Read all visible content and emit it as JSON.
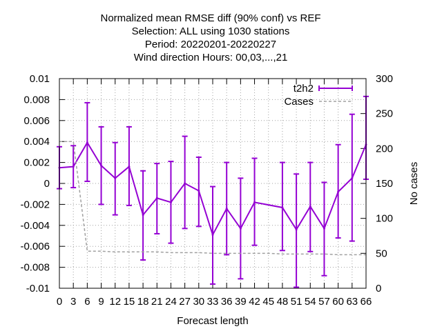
{
  "chart_data": {
    "type": "line",
    "title_lines": [
      "Normalized mean RMSE diff (90% conf) vs REF",
      "Selection: ALL using  1030 stations",
      "Period: 20220201-20220227",
      "Wind direction   Hours:  00,03,...,21"
    ],
    "xlabel": "Forecast length",
    "ylabel_right": "No cases",
    "x": [
      0,
      3,
      6,
      9,
      12,
      15,
      18,
      21,
      24,
      27,
      30,
      33,
      36,
      39,
      42,
      45,
      48,
      51,
      54,
      57,
      60,
      63,
      66
    ],
    "xlim": [
      0,
      66
    ],
    "ylim_left": [
      -0.01,
      0.01
    ],
    "ylim_right": [
      0,
      300
    ],
    "x_ticks": [
      "0",
      "3",
      "6",
      "9",
      "12",
      "15",
      "18",
      "21",
      "24",
      "27",
      "30",
      "33",
      "36",
      "39",
      "42",
      "45",
      "48",
      "51",
      "54",
      "57",
      "60",
      "63",
      "66"
    ],
    "y_ticks_left": [
      "-0.01",
      "-0.008",
      "-0.006",
      "-0.004",
      "-0.002",
      "0",
      "0.002",
      "0.004",
      "0.006",
      "0.008",
      "0.01"
    ],
    "y_ticks_right": [
      "0",
      "50",
      "100",
      "150",
      "200",
      "250",
      "300"
    ],
    "grid": true,
    "legend_position": "top-right",
    "series": [
      {
        "name": "t2h2",
        "axis": "left",
        "color": "#9400d3",
        "style": "line-with-errorbars",
        "x": [
          0,
          3,
          6,
          9,
          12,
          15,
          18,
          21,
          24,
          27,
          30,
          33,
          36,
          39,
          42,
          48,
          51,
          54,
          57,
          60,
          63,
          66
        ],
        "values": [
          0.0015,
          0.0016,
          0.0039,
          0.0017,
          0.0005,
          0.0016,
          -0.003,
          -0.0014,
          -0.0018,
          0.0,
          -0.0007,
          -0.0049,
          -0.0024,
          -0.0043,
          -0.0018,
          -0.0023,
          -0.0044,
          -0.0022,
          -0.0043,
          -0.0008,
          0.0005,
          0.0037
        ],
        "err_low": [
          -0.0005,
          -0.0004,
          0.0002,
          -0.002,
          -0.003,
          -0.0021,
          -0.0073,
          -0.0048,
          -0.0057,
          -0.0043,
          -0.0041,
          -0.0096,
          -0.0068,
          -0.0091,
          -0.0059,
          -0.0064,
          -0.0099,
          -0.0065,
          -0.0088,
          -0.0052,
          -0.0055,
          0.0004
        ],
        "err_high": [
          0.0035,
          0.0036,
          0.0077,
          0.0054,
          0.0039,
          0.0054,
          0.0012,
          0.0019,
          0.0021,
          0.0045,
          0.0025,
          -0.0003,
          0.002,
          0.0005,
          0.0024,
          0.002,
          0.0009,
          0.002,
          0.0001,
          0.0037,
          0.0066,
          0.0083
        ]
      },
      {
        "name": "Cases",
        "axis": "right",
        "color": "#a0a0a0",
        "style": "dashed",
        "x": [
          0,
          3,
          6,
          9,
          12,
          15,
          18,
          21,
          24,
          27,
          30,
          33,
          36,
          39,
          42,
          45,
          48,
          51,
          54,
          57,
          60,
          63,
          66
        ],
        "values": [
          210,
          210,
          53,
          53,
          52,
          52,
          52,
          52,
          51,
          51,
          51,
          50,
          50,
          50,
          50,
          50,
          49,
          49,
          49,
          49,
          48,
          48,
          48
        ]
      }
    ]
  }
}
